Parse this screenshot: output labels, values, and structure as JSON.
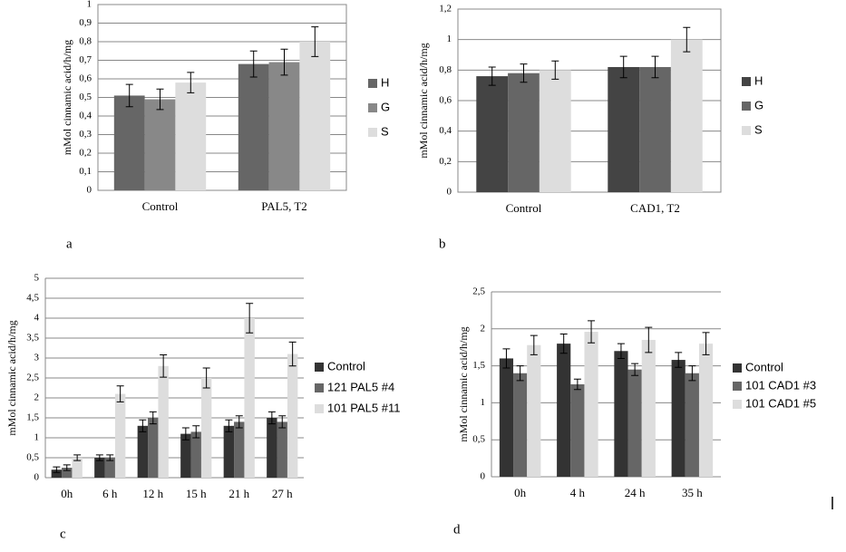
{
  "chart_data": [
    {
      "type": "bar",
      "panel_label": "a",
      "y_label": "mMol cinnamic  acid/h/mg",
      "categories": [
        "Control",
        "PAL5, T2"
      ],
      "series": [
        {
          "name": "H",
          "color": "#666666",
          "values": [
            0.51,
            0.68
          ],
          "errors": [
            0.06,
            0.07
          ]
        },
        {
          "name": "G",
          "color": "#888888",
          "values": [
            0.49,
            0.69
          ],
          "errors": [
            0.055,
            0.07
          ]
        },
        {
          "name": "S",
          "color": "#dddddd",
          "values": [
            0.58,
            0.8
          ],
          "errors": [
            0.055,
            0.08
          ]
        }
      ],
      "ylim": [
        0,
        1
      ],
      "yticks": [
        0,
        {
          "value": 0.1,
          "label": "0,1"
        },
        {
          "value": 0.2,
          "label": "0,2"
        },
        {
          "value": 0.3,
          "label": "0,3"
        },
        {
          "value": 0.4,
          "label": "0,4"
        },
        {
          "value": 0.5,
          "label": "0,5"
        },
        {
          "value": 0.6,
          "label": "0,6"
        },
        {
          "value": 0.7,
          "label": "0,7"
        },
        {
          "value": 0.8,
          "label": "0,8"
        },
        {
          "value": 0.9,
          "label": "0,9"
        },
        1
      ],
      "grid": true
    },
    {
      "type": "bar",
      "panel_label": "b",
      "y_label": "mMol cinnamic  acid/h/mg",
      "categories": [
        "Control",
        "CAD1, T2"
      ],
      "series": [
        {
          "name": "H",
          "color": "#444444",
          "values": [
            0.76,
            0.82
          ],
          "errors": [
            0.06,
            0.07
          ]
        },
        {
          "name": "G",
          "color": "#666666",
          "values": [
            0.78,
            0.82
          ],
          "errors": [
            0.06,
            0.07
          ]
        },
        {
          "name": "S",
          "color": "#dddddd",
          "values": [
            0.8,
            1.0
          ],
          "errors": [
            0.06,
            0.08
          ]
        }
      ],
      "ylim": [
        0,
        1.2
      ],
      "yticks": [
        0,
        {
          "value": 0.2,
          "label": "0,2"
        },
        {
          "value": 0.4,
          "label": "0,4"
        },
        {
          "value": 0.6,
          "label": "0,6"
        },
        {
          "value": 0.8,
          "label": "0,8"
        },
        1,
        {
          "value": 1.2,
          "label": "1,2"
        }
      ],
      "grid": true
    },
    {
      "type": "bar",
      "panel_label": "c",
      "y_label": "mMol cinnamic  acid/h/mg",
      "categories": [
        "0h",
        "6 h",
        "12 h",
        "15 h",
        "21 h",
        "27 h"
      ],
      "series": [
        {
          "name": "Control",
          "color": "#333333",
          "values": [
            0.2,
            0.5,
            1.3,
            1.1,
            1.3,
            1.5
          ],
          "errors": [
            0.07,
            0.07,
            0.15,
            0.15,
            0.15,
            0.15
          ]
        },
        {
          "name": "121 PAL5 #4",
          "color": "#666666",
          "values": [
            0.25,
            0.5,
            1.5,
            1.15,
            1.4,
            1.4
          ],
          "errors": [
            0.07,
            0.07,
            0.15,
            0.15,
            0.15,
            0.15
          ]
        },
        {
          "name": "101 PAL5 #11",
          "color": "#dddddd",
          "values": [
            0.5,
            2.1,
            2.8,
            2.5,
            4.0,
            3.1
          ],
          "errors": [
            0.07,
            0.2,
            0.28,
            0.25,
            0.37,
            0.3
          ]
        }
      ],
      "ylim": [
        0,
        5
      ],
      "yticks": [
        0,
        {
          "value": 0.5,
          "label": "0,5"
        },
        1,
        {
          "value": 1.5,
          "label": "1,5"
        },
        2,
        {
          "value": 2.5,
          "label": "2,5"
        },
        3,
        {
          "value": 3.5,
          "label": "3,5"
        },
        4,
        {
          "value": 4.5,
          "label": "4,5"
        },
        5
      ],
      "grid": true
    },
    {
      "type": "bar",
      "panel_label": "d",
      "y_label": "mMol cinnamic  acid/h/mg",
      "categories": [
        "0h",
        "4 h",
        "24 h",
        "35 h"
      ],
      "series": [
        {
          "name": "Control",
          "color": "#333333",
          "values": [
            1.6,
            1.8,
            1.7,
            1.58
          ],
          "errors": [
            0.13,
            0.13,
            0.1,
            0.1
          ]
        },
        {
          "name": "101 CAD1 #3",
          "color": "#666666",
          "values": [
            1.4,
            1.25,
            1.45,
            1.4
          ],
          "errors": [
            0.1,
            0.07,
            0.08,
            0.1
          ]
        },
        {
          "name": "101 CAD1 #5",
          "color": "#dddddd",
          "values": [
            1.78,
            1.96,
            1.85,
            1.8
          ],
          "errors": [
            0.13,
            0.15,
            0.17,
            0.15
          ]
        }
      ],
      "ylim": [
        0,
        2.5
      ],
      "yticks": [
        0,
        {
          "value": 0.5,
          "label": "0,5"
        },
        1,
        {
          "value": 1.5,
          "label": "1,5"
        },
        2,
        {
          "value": 2.5,
          "label": "2,5"
        }
      ],
      "grid": true
    }
  ]
}
